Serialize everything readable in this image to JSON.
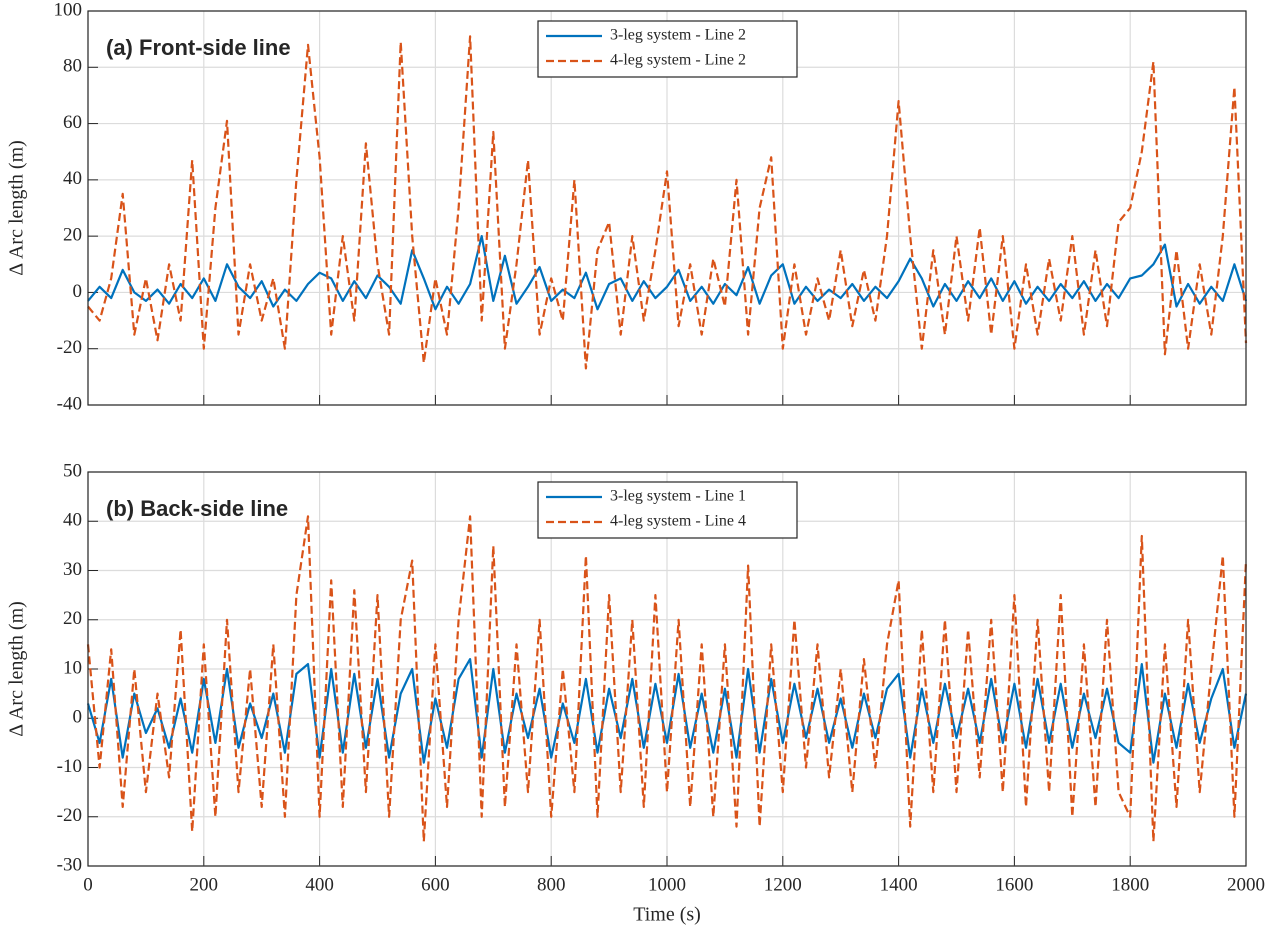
{
  "chart_data": [
    {
      "type": "line",
      "annotation": "(a) Front-side line",
      "ylabel": "Δ Arc length (m)",
      "xlim": [
        0,
        2000
      ],
      "xticks": [
        0,
        200,
        400,
        600,
        800,
        1000,
        1200,
        1400,
        1600,
        1800,
        2000
      ],
      "ylim": [
        -40,
        100
      ],
      "yticks": [
        -40,
        -20,
        0,
        20,
        40,
        60,
        80,
        100
      ],
      "grid": true,
      "legend": "top",
      "x": [
        0,
        20,
        40,
        60,
        80,
        100,
        120,
        140,
        160,
        180,
        200,
        220,
        240,
        260,
        280,
        300,
        320,
        340,
        360,
        380,
        400,
        420,
        440,
        460,
        480,
        500,
        520,
        540,
        560,
        580,
        600,
        620,
        640,
        660,
        680,
        700,
        720,
        740,
        760,
        780,
        800,
        820,
        840,
        860,
        880,
        900,
        920,
        940,
        960,
        980,
        1000,
        1020,
        1040,
        1060,
        1080,
        1100,
        1120,
        1140,
        1160,
        1180,
        1200,
        1220,
        1240,
        1260,
        1280,
        1300,
        1320,
        1340,
        1360,
        1380,
        1400,
        1420,
        1440,
        1460,
        1480,
        1500,
        1520,
        1540,
        1560,
        1580,
        1600,
        1620,
        1640,
        1660,
        1680,
        1700,
        1720,
        1740,
        1760,
        1780,
        1800,
        1820,
        1840,
        1860,
        1880,
        1900,
        1920,
        1940,
        1960,
        1980,
        2000
      ],
      "series": [
        {
          "name": "3-leg system - Line 2",
          "color": "#0072BD",
          "dash": false,
          "values": [
            -3,
            2,
            -2,
            8,
            0,
            -3,
            1,
            -4,
            3,
            -2,
            5,
            -3,
            10,
            2,
            -2,
            4,
            -5,
            1,
            -3,
            3,
            7,
            5,
            -3,
            4,
            -2,
            6,
            2,
            -4,
            15,
            5,
            -6,
            2,
            -4,
            3,
            20,
            -3,
            13,
            -4,
            2,
            9,
            -3,
            1,
            -2,
            7,
            -6,
            3,
            5,
            -3,
            4,
            -2,
            2,
            8,
            -3,
            2,
            -4,
            3,
            -1,
            9,
            -4,
            6,
            10,
            -4,
            2,
            -3,
            1,
            -2,
            3,
            -3,
            2,
            -2,
            4,
            12,
            5,
            -5,
            3,
            -3,
            4,
            -2,
            5,
            -3,
            4,
            -4,
            2,
            -3,
            3,
            -2,
            4,
            -3,
            3,
            -2,
            5,
            6,
            10,
            17,
            -5,
            3,
            -4,
            2,
            -3,
            10,
            -3
          ]
        },
        {
          "name": "4-leg system - Line 2",
          "color": "#D95319",
          "dash": true,
          "values": [
            -5,
            -10,
            5,
            35,
            -15,
            5,
            -17,
            10,
            -10,
            47,
            -20,
            30,
            61,
            -15,
            10,
            -10,
            5,
            -20,
            40,
            88,
            48,
            -15,
            20,
            -10,
            53,
            10,
            -15,
            89,
            20,
            -25,
            5,
            -15,
            30,
            91,
            -10,
            57,
            -20,
            10,
            47,
            -15,
            5,
            -10,
            40,
            -27,
            15,
            25,
            -15,
            20,
            -10,
            15,
            43,
            -12,
            10,
            -15,
            12,
            -5,
            40,
            -15,
            30,
            48,
            -20,
            10,
            -15,
            5,
            -10,
            15,
            -12,
            8,
            -10,
            20,
            68,
            20,
            -20,
            15,
            -15,
            20,
            -10,
            23,
            -15,
            20,
            -20,
            10,
            -15,
            12,
            -10,
            20,
            -15,
            15,
            -12,
            25,
            30,
            50,
            82,
            -22,
            15,
            -20,
            10,
            -15,
            20,
            73,
            -18
          ]
        }
      ]
    },
    {
      "type": "line",
      "annotation": "(b) Back-side line",
      "ylabel": "Δ Arc length (m)",
      "xlabel": "Time (s)",
      "xlim": [
        0,
        2000
      ],
      "xticks": [
        0,
        200,
        400,
        600,
        800,
        1000,
        1200,
        1400,
        1600,
        1800,
        2000
      ],
      "ylim": [
        -30,
        50
      ],
      "yticks": [
        -30,
        -20,
        -10,
        0,
        10,
        20,
        30,
        40,
        50
      ],
      "grid": true,
      "legend": "top",
      "x": [
        0,
        20,
        40,
        60,
        80,
        100,
        120,
        140,
        160,
        180,
        200,
        220,
        240,
        260,
        280,
        300,
        320,
        340,
        360,
        380,
        400,
        420,
        440,
        460,
        480,
        500,
        520,
        540,
        560,
        580,
        600,
        620,
        640,
        660,
        680,
        700,
        720,
        740,
        760,
        780,
        800,
        820,
        840,
        860,
        880,
        900,
        920,
        940,
        960,
        980,
        1000,
        1020,
        1040,
        1060,
        1080,
        1100,
        1120,
        1140,
        1160,
        1180,
        1200,
        1220,
        1240,
        1260,
        1280,
        1300,
        1320,
        1340,
        1360,
        1380,
        1400,
        1420,
        1440,
        1460,
        1480,
        1500,
        1520,
        1540,
        1560,
        1580,
        1600,
        1620,
        1640,
        1660,
        1680,
        1700,
        1720,
        1740,
        1760,
        1780,
        1800,
        1820,
        1840,
        1860,
        1880,
        1900,
        1920,
        1940,
        1960,
        1980,
        2000
      ],
      "series": [
        {
          "name": "3-leg system - Line 1",
          "color": "#0072BD",
          "dash": false,
          "values": [
            3,
            -5,
            8,
            -8,
            5,
            -3,
            2,
            -6,
            4,
            -7,
            8,
            -5,
            10,
            -6,
            3,
            -4,
            5,
            -7,
            9,
            11,
            -8,
            10,
            -7,
            9,
            -6,
            8,
            -8,
            5,
            10,
            -9,
            4,
            -6,
            8,
            12,
            -8,
            10,
            -7,
            5,
            -4,
            6,
            -8,
            3,
            -5,
            8,
            -7,
            6,
            -4,
            8,
            -6,
            7,
            -5,
            9,
            -6,
            5,
            -7,
            6,
            -8,
            10,
            -7,
            8,
            -5,
            7,
            -4,
            6,
            -5,
            4,
            -6,
            5,
            -4,
            6,
            9,
            -8,
            6,
            -5,
            7,
            -4,
            6,
            -5,
            8,
            -5,
            7,
            -6,
            8,
            -5,
            7,
            -6,
            5,
            -4,
            6,
            -5,
            -7,
            11,
            -9,
            5,
            -6,
            7,
            -5,
            4,
            10,
            -6,
            5
          ]
        },
        {
          "name": "4-leg system - Line 4",
          "color": "#D95319",
          "dash": true,
          "values": [
            15,
            -10,
            14,
            -18,
            10,
            -15,
            5,
            -12,
            18,
            -23,
            15,
            -20,
            20,
            -15,
            10,
            -18,
            15,
            -20,
            25,
            41,
            -20,
            28,
            -18,
            26,
            -15,
            25,
            -20,
            20,
            32,
            -25,
            15,
            -18,
            20,
            41,
            -20,
            35,
            -18,
            15,
            -15,
            20,
            -20,
            10,
            -15,
            33,
            -20,
            25,
            -15,
            20,
            -18,
            25,
            -15,
            20,
            -18,
            15,
            -20,
            15,
            -22,
            31,
            -22,
            15,
            -15,
            20,
            -10,
            15,
            -12,
            10,
            -15,
            12,
            -10,
            15,
            28,
            -22,
            18,
            -15,
            20,
            -15,
            18,
            -12,
            20,
            -15,
            25,
            -18,
            20,
            -15,
            25,
            -20,
            15,
            -18,
            20,
            -15,
            -20,
            37,
            -25,
            15,
            -18,
            20,
            -15,
            10,
            33,
            -20,
            32
          ]
        }
      ]
    }
  ]
}
